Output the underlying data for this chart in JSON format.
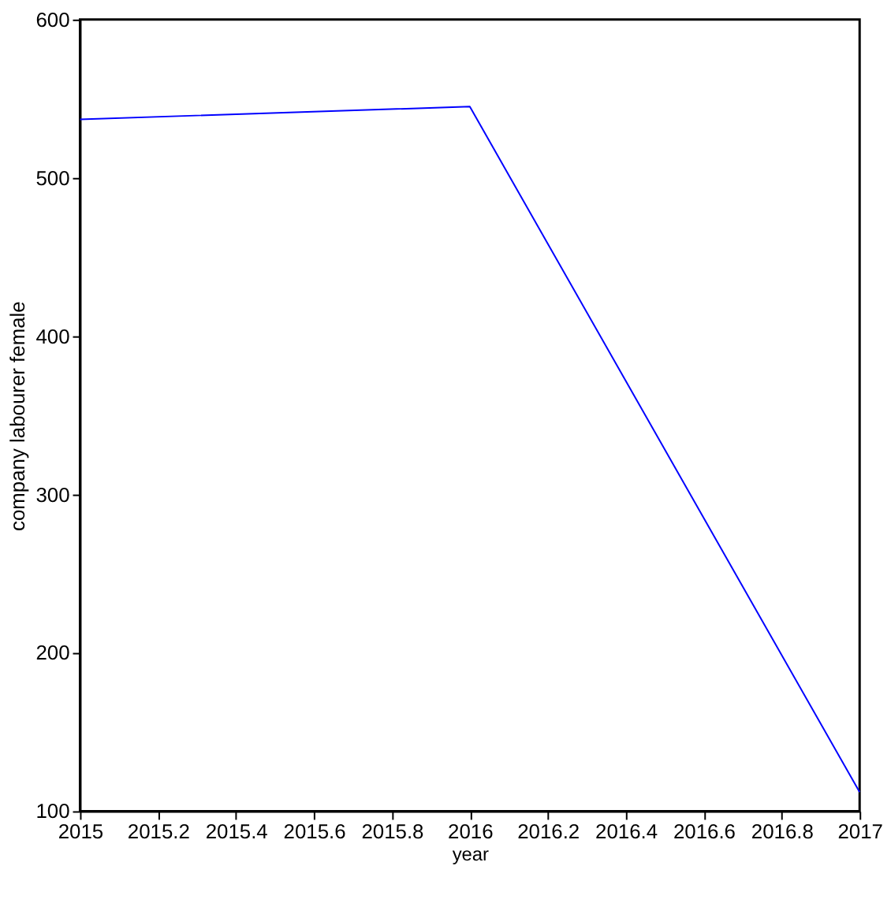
{
  "chart_data": {
    "type": "line",
    "xlabel": "year",
    "ylabel": "company labourer female",
    "x": [
      2015,
      2016,
      2017
    ],
    "series": [
      {
        "color": "#0000ff",
        "values": [
          537,
          545,
          112
        ]
      }
    ],
    "xlim": [
      2015,
      2017
    ],
    "xticks": [
      2015,
      2015.2,
      2015.4,
      2015.6,
      2015.8,
      2016,
      2016.2,
      2016.4,
      2016.6,
      2016.8,
      2017
    ],
    "ylim": [
      100,
      600
    ],
    "yticks": [
      100,
      200,
      300,
      400,
      500,
      600
    ],
    "grid": false,
    "legend": false,
    "marker": "none",
    "line_style": "solid"
  }
}
